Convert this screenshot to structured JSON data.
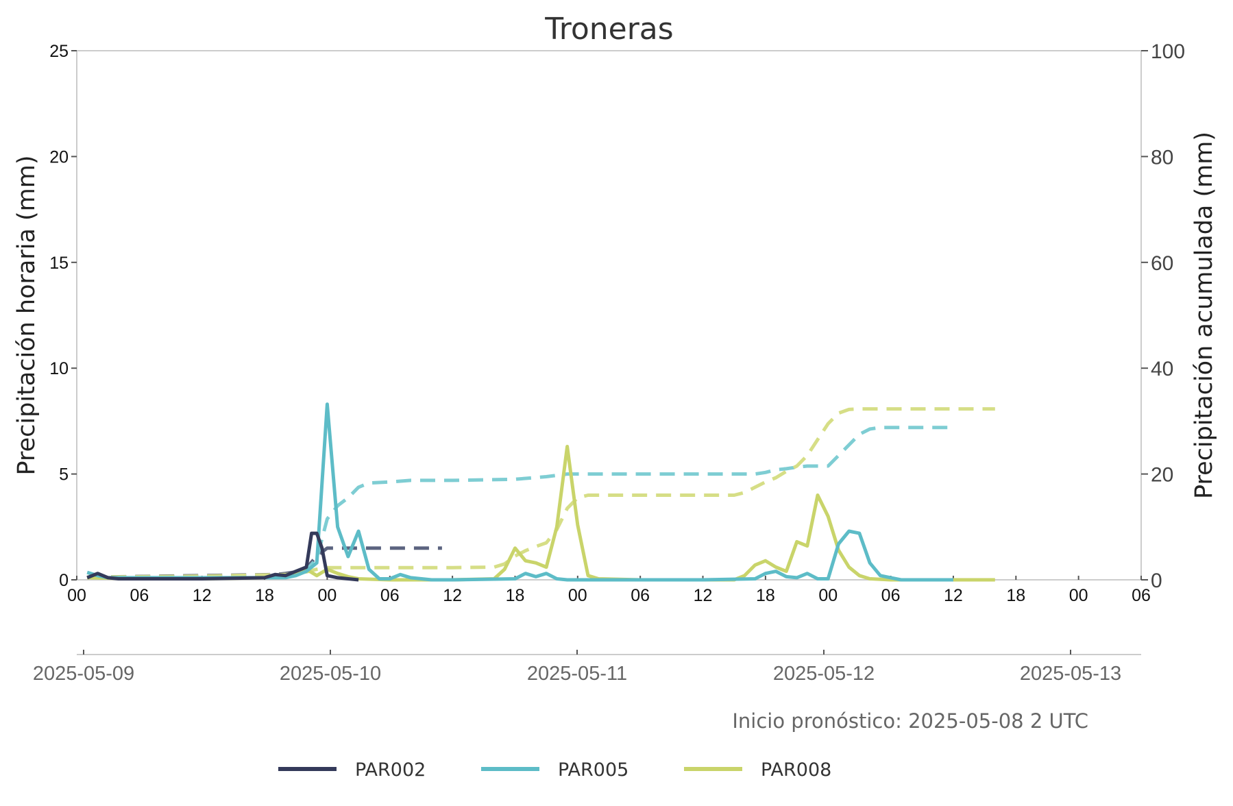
{
  "chart_data": {
    "type": "line",
    "title": "Troneras",
    "ylabel_left": "Precipitación horaria (mm)",
    "ylabel_right": "Precipitación acumulada (mm)",
    "ylim_left": [
      0,
      25
    ],
    "ylim_right": [
      0,
      100
    ],
    "yticks_left": [
      "0",
      "5",
      "10",
      "15",
      "20",
      "25"
    ],
    "yticks_right": [
      "0",
      "20",
      "40",
      "60",
      "80",
      "100"
    ],
    "xlim": [
      "2025-05-09 00:00",
      "2025-05-13 06:00"
    ],
    "hour_tick_labels": [
      "00",
      "06",
      "12",
      "18",
      "00",
      "06",
      "12",
      "18",
      "00",
      "06",
      "12",
      "18",
      "00",
      "06",
      "12",
      "18",
      "00",
      "06"
    ],
    "date_tick_labels": [
      "2025-05-09",
      "2025-05-10",
      "2025-05-11",
      "2025-05-12",
      "2025-05-13"
    ],
    "grid": false,
    "legend_position": "bottom-center",
    "note": "Inicio pronóstico: 2025-05-08 2 UTC",
    "colors": {
      "PAR002": "#343a5a",
      "PAR005": "#5dbcc7",
      "PAR008": "#c9d46a",
      "PAR002_cumulative": "#5c6480",
      "PAR005_cumulative": "#7ecdd3",
      "PAR008_cumulative": "#d6de86"
    },
    "legend": [
      "PAR002",
      "PAR005",
      "PAR008"
    ],
    "series_hourly": [
      {
        "name": "PAR002",
        "x": [
          "2025-05-09 01:00",
          "2025-05-09 02:00",
          "2025-05-09 03:00",
          "2025-05-09 04:00",
          "2025-05-09 12:00",
          "2025-05-09 18:00",
          "2025-05-09 19:00",
          "2025-05-09 20:00",
          "2025-05-09 21:00",
          "2025-05-09 22:00",
          "2025-05-09 22:30",
          "2025-05-09 23:00",
          "2025-05-09 23:30",
          "2025-05-10 00:00",
          "2025-05-10 01:00",
          "2025-05-10 02:00",
          "2025-05-10 03:00"
        ],
        "values": [
          0.1,
          0.3,
          0.1,
          0.05,
          0.05,
          0.1,
          0.25,
          0.2,
          0.4,
          0.6,
          2.2,
          2.2,
          1.5,
          0.2,
          0.1,
          0.05,
          0.0
        ]
      },
      {
        "name": "PAR005",
        "x": [
          "2025-05-09 01:00",
          "2025-05-09 02:00",
          "2025-05-09 03:00",
          "2025-05-09 06:00",
          "2025-05-09 12:00",
          "2025-05-09 18:00",
          "2025-05-09 20:00",
          "2025-05-09 21:00",
          "2025-05-09 22:00",
          "2025-05-09 23:00",
          "2025-05-10 00:00",
          "2025-05-10 01:00",
          "2025-05-10 02:00",
          "2025-05-10 03:00",
          "2025-05-10 04:00",
          "2025-05-10 05:00",
          "2025-05-10 06:00",
          "2025-05-10 07:00",
          "2025-05-10 08:00",
          "2025-05-10 10:00",
          "2025-05-10 12:00",
          "2025-05-10 18:00",
          "2025-05-10 19:00",
          "2025-05-10 20:00",
          "2025-05-10 21:00",
          "2025-05-10 22:00",
          "2025-05-10 23:00",
          "2025-05-11 00:00",
          "2025-05-11 06:00",
          "2025-05-11 12:00",
          "2025-05-11 17:00",
          "2025-05-11 18:00",
          "2025-05-11 19:00",
          "2025-05-11 20:00",
          "2025-05-11 21:00",
          "2025-05-11 22:00",
          "2025-05-11 23:00",
          "2025-05-12 00:00",
          "2025-05-12 01:00",
          "2025-05-12 02:00",
          "2025-05-12 03:00",
          "2025-05-12 04:00",
          "2025-05-12 05:00",
          "2025-05-12 06:00",
          "2025-05-12 07:00",
          "2025-05-12 12:00"
        ],
        "values": [
          0.35,
          0.2,
          0.1,
          0.1,
          0.1,
          0.1,
          0.1,
          0.2,
          0.4,
          0.8,
          8.3,
          2.5,
          1.1,
          2.3,
          0.5,
          0.05,
          0.05,
          0.25,
          0.1,
          0.0,
          0.0,
          0.05,
          0.3,
          0.15,
          0.3,
          0.05,
          0.0,
          0.0,
          0.0,
          0.0,
          0.05,
          0.3,
          0.4,
          0.15,
          0.1,
          0.3,
          0.05,
          0.05,
          1.7,
          2.3,
          2.2,
          0.8,
          0.2,
          0.1,
          0.0,
          0.0
        ]
      },
      {
        "name": "PAR008",
        "x": [
          "2025-05-09 01:00",
          "2025-05-09 06:00",
          "2025-05-09 12:00",
          "2025-05-09 18:00",
          "2025-05-09 20:00",
          "2025-05-09 21:00",
          "2025-05-09 22:00",
          "2025-05-09 23:00",
          "2025-05-10 00:00",
          "2025-05-10 01:00",
          "2025-05-10 02:00",
          "2025-05-10 03:00",
          "2025-05-10 06:00",
          "2025-05-10 12:00",
          "2025-05-10 16:00",
          "2025-05-10 17:00",
          "2025-05-10 18:00",
          "2025-05-10 19:00",
          "2025-05-10 20:00",
          "2025-05-10 21:00",
          "2025-05-10 22:00",
          "2025-05-10 23:00",
          "2025-05-11 00:00",
          "2025-05-11 01:00",
          "2025-05-11 02:00",
          "2025-05-11 06:00",
          "2025-05-11 12:00",
          "2025-05-11 15:00",
          "2025-05-11 16:00",
          "2025-05-11 17:00",
          "2025-05-11 18:00",
          "2025-05-11 19:00",
          "2025-05-11 20:00",
          "2025-05-11 21:00",
          "2025-05-11 22:00",
          "2025-05-11 23:00",
          "2025-05-12 00:00",
          "2025-05-12 01:00",
          "2025-05-12 02:00",
          "2025-05-12 03:00",
          "2025-05-12 04:00",
          "2025-05-12 06:00",
          "2025-05-12 12:00",
          "2025-05-12 16:00"
        ],
        "values": [
          0.1,
          0.05,
          0.05,
          0.1,
          0.2,
          0.35,
          0.5,
          0.2,
          0.5,
          0.3,
          0.15,
          0.05,
          0.0,
          0.0,
          0.05,
          0.5,
          1.5,
          0.9,
          0.8,
          0.6,
          2.5,
          6.3,
          2.6,
          0.2,
          0.05,
          0.0,
          0.0,
          0.0,
          0.2,
          0.7,
          0.9,
          0.6,
          0.4,
          1.8,
          1.6,
          4.0,
          3.0,
          1.4,
          0.6,
          0.2,
          0.05,
          0.0,
          0.0,
          0.0
        ]
      }
    ],
    "series_cumulative": [
      {
        "name": "PAR002",
        "x": [
          "2025-05-09 01:00",
          "2025-05-09 12:00",
          "2025-05-09 19:00",
          "2025-05-09 20:00",
          "2025-05-09 21:00",
          "2025-05-09 22:00",
          "2025-05-09 23:00",
          "2025-05-10 00:00",
          "2025-05-10 01:00",
          "2025-05-10 11:00"
        ],
        "values": [
          0.5,
          0.8,
          1.0,
          1.2,
          1.5,
          2.2,
          4.5,
          6.0,
          6.0,
          6.0
        ]
      },
      {
        "name": "PAR005",
        "x": [
          "2025-05-09 01:00",
          "2025-05-09 12:00",
          "2025-05-09 20:00",
          "2025-05-09 21:00",
          "2025-05-09 22:00",
          "2025-05-09 23:00",
          "2025-05-10 00:00",
          "2025-05-10 01:00",
          "2025-05-10 02:00",
          "2025-05-10 03:00",
          "2025-05-10 04:00",
          "2025-05-10 06:00",
          "2025-05-10 08:00",
          "2025-05-10 12:00",
          "2025-05-10 18:00",
          "2025-05-10 21:00",
          "2025-05-10 23:00",
          "2025-05-11 00:00",
          "2025-05-11 06:00",
          "2025-05-11 17:00",
          "2025-05-11 18:00",
          "2025-05-11 19:00",
          "2025-05-11 20:00",
          "2025-05-11 21:00",
          "2025-05-11 22:00",
          "2025-05-12 00:00",
          "2025-05-12 01:00",
          "2025-05-12 02:00",
          "2025-05-12 03:00",
          "2025-05-12 04:00",
          "2025-05-12 05:00",
          "2025-05-12 06:00",
          "2025-05-12 12:00"
        ],
        "values": [
          0.5,
          0.6,
          0.9,
          1.2,
          1.8,
          4.0,
          11.5,
          14.0,
          15.5,
          17.5,
          18.3,
          18.5,
          18.8,
          18.8,
          19.0,
          19.5,
          20.0,
          20.0,
          20.0,
          20.0,
          20.3,
          20.8,
          21.0,
          21.3,
          21.5,
          21.5,
          23.5,
          25.5,
          27.5,
          28.5,
          28.8,
          28.8,
          28.8
        ]
      },
      {
        "name": "PAR008",
        "x": [
          "2025-05-09 01:00",
          "2025-05-09 12:00",
          "2025-05-09 20:00",
          "2025-05-09 22:00",
          "2025-05-09 23:00",
          "2025-05-10 00:00",
          "2025-05-10 06:00",
          "2025-05-10 12:00",
          "2025-05-10 16:00",
          "2025-05-10 17:00",
          "2025-05-10 18:00",
          "2025-05-10 19:00",
          "2025-05-10 20:00",
          "2025-05-10 21:00",
          "2025-05-10 22:00",
          "2025-05-10 23:00",
          "2025-05-11 00:00",
          "2025-05-11 01:00",
          "2025-05-11 06:00",
          "2025-05-11 15:00",
          "2025-05-11 16:00",
          "2025-05-11 17:00",
          "2025-05-11 18:00",
          "2025-05-11 19:00",
          "2025-05-11 20:00",
          "2025-05-11 21:00",
          "2025-05-11 22:00",
          "2025-05-11 23:00",
          "2025-05-12 00:00",
          "2025-05-12 01:00",
          "2025-05-12 02:00",
          "2025-05-12 03:00",
          "2025-05-12 06:00",
          "2025-05-12 16:00"
        ],
        "values": [
          0.5,
          0.7,
          1.0,
          1.5,
          2.0,
          2.3,
          2.3,
          2.3,
          2.4,
          3.0,
          4.5,
          5.5,
          6.3,
          7.0,
          9.5,
          13.5,
          15.5,
          16.0,
          16.0,
          16.0,
          16.5,
          17.5,
          18.5,
          19.3,
          20.5,
          21.5,
          23.5,
          26.5,
          29.5,
          31.5,
          32.2,
          32.3,
          32.3,
          32.3
        ]
      }
    ]
  }
}
